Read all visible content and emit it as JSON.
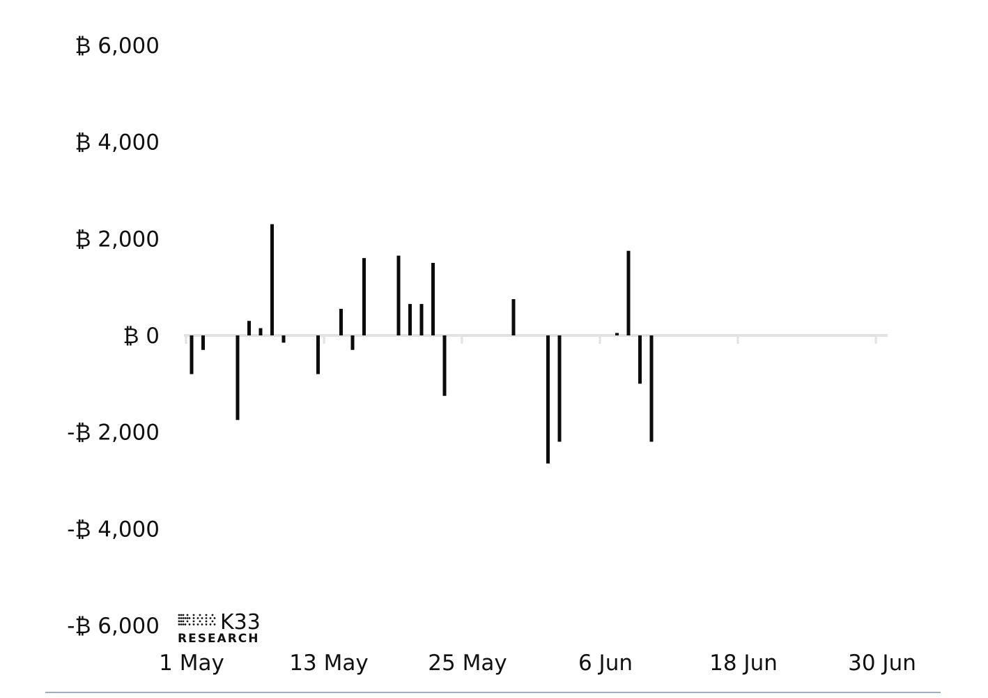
{
  "chart_data": {
    "type": "bar",
    "title": "",
    "xlabel": "",
    "ylabel": "",
    "x_tick_labels": [
      "1 May",
      "13 May",
      "25 May",
      "6 Jun",
      "18 Jun",
      "30 Jun"
    ],
    "y_tick_labels": [
      "₿ 6,000",
      "₿ 4,000",
      "₿ 2,000",
      "₿ 0",
      "-₿ 2,000",
      "-₿ 4,000",
      "-₿ 6,000"
    ],
    "ylim": [
      -6000,
      6000
    ],
    "grid": false,
    "bar_color": "#0b0b0b",
    "zero_line_color": "#e2e2e2",
    "series": [
      {
        "values": [
          -800,
          -300,
          0,
          0,
          -1750,
          300,
          150,
          2300,
          -150,
          0,
          0,
          -800,
          0,
          550,
          -300,
          1600,
          0,
          0,
          1650,
          650,
          650,
          1500,
          -1250,
          0,
          0,
          0,
          0,
          0,
          750,
          0,
          0,
          -2650,
          -2200,
          0,
          0,
          0,
          0,
          50,
          1750,
          -1000,
          -2200,
          0,
          0,
          0,
          0,
          0,
          0,
          0,
          0,
          0,
          0,
          0,
          0,
          0,
          0,
          0,
          0,
          0,
          0,
          0,
          0
        ]
      }
    ],
    "dates": [
      "1 May",
      "2 May",
      "3 May",
      "4 May",
      "5 May",
      "6 May",
      "7 May",
      "8 May",
      "9 May",
      "10 May",
      "11 May",
      "12 May",
      "13 May",
      "14 May",
      "15 May",
      "16 May",
      "17 May",
      "18 May",
      "19 May",
      "20 May",
      "21 May",
      "22 May",
      "23 May",
      "24 May",
      "25 May",
      "26 May",
      "27 May",
      "28 May",
      "29 May",
      "30 May",
      "31 May",
      "1 Jun",
      "2 Jun",
      "3 Jun",
      "4 Jun",
      "5 Jun",
      "6 Jun",
      "7 Jun",
      "8 Jun",
      "9 Jun",
      "10 Jun",
      "11 Jun",
      "12 Jun",
      "13 Jun",
      "14 Jun",
      "15 Jun",
      "16 Jun",
      "17 Jun",
      "18 Jun",
      "19 Jun",
      "20 Jun",
      "21 Jun",
      "22 Jun",
      "23 Jun",
      "24 Jun",
      "25 Jun",
      "26 Jun",
      "27 Jun",
      "28 Jun",
      "29 Jun",
      "30 Jun"
    ]
  },
  "branding": {
    "logo_text": "K33",
    "logo_subtext": "RESEARCH"
  },
  "footer_rule_color": "#8093a6"
}
